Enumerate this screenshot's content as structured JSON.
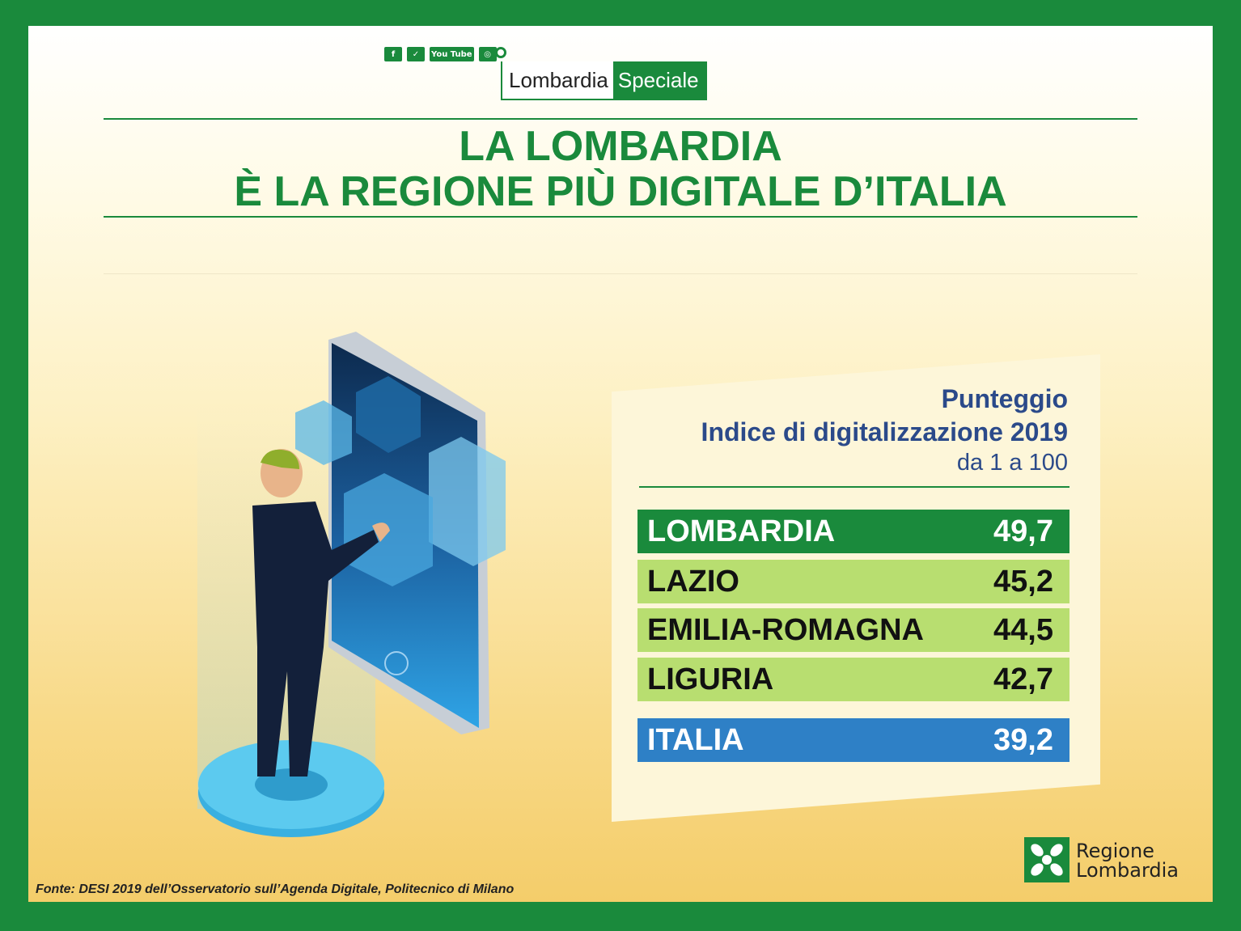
{
  "header": {
    "social_icons": [
      "facebook-icon",
      "twitter-icon",
      "youtube-icon",
      "instagram-icon",
      "location-pin-icon"
    ],
    "social_labels": [
      "f",
      "✓",
      "You Tube",
      "◎"
    ],
    "brand_left": "Lombardia",
    "brand_right": "Speciale"
  },
  "title": {
    "line1_prefix": "LA ",
    "line1_bold": "LOMBARDIA",
    "line2": "È LA REGIONE PIÙ DIGITALE D’ITALIA"
  },
  "card": {
    "heading1": "Punteggio",
    "heading2": "Indice di digitalizzazione 2019",
    "heading3": "da 1 a 100",
    "rows": [
      {
        "region": "LOMBARDIA",
        "score": "49,7"
      },
      {
        "region": "LAZIO",
        "score": "45,2"
      },
      {
        "region": "EMILIA-ROMAGNA",
        "score": "44,5"
      },
      {
        "region": "LIGURIA",
        "score": "42,7"
      }
    ],
    "total": {
      "region": "ITALIA",
      "score": "39,2"
    }
  },
  "footer": {
    "source": "Fonte: DESI 2019 dell’Osservatorio sull’Agenda Digitale, Politecnico di Milano",
    "logo_line1": "Regione",
    "logo_line2": "Lombardia"
  },
  "colors": {
    "green": "#1a8a3c",
    "light_green": "#b8de70",
    "blue": "#2e80c6",
    "navy_text": "#2b4a8a"
  }
}
